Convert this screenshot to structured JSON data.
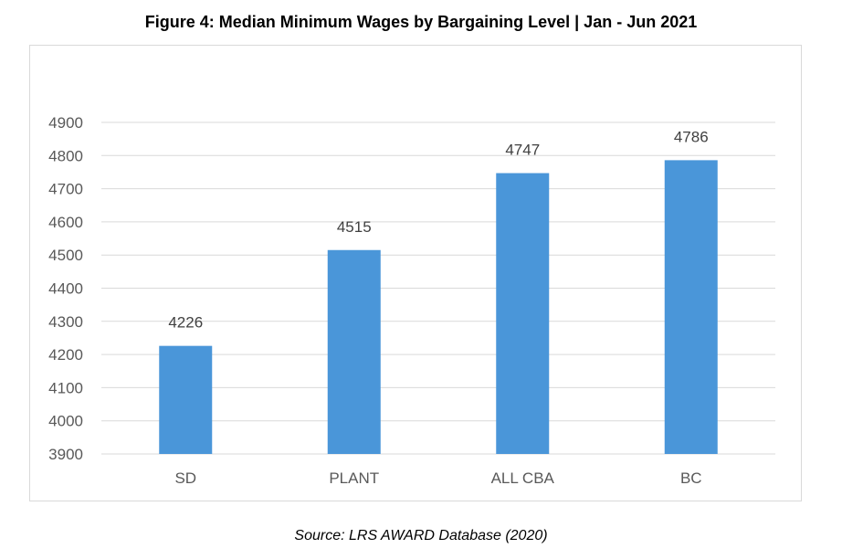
{
  "figure": {
    "title": "Figure 4: Median Minimum Wages by Bargaining Level | Jan - Jun 2021",
    "source": "Source: LRS AWARD Database (2020)"
  },
  "chart_data": {
    "type": "bar",
    "title": "Figure 4: Median Minimum Wages by Bargaining Level | Jan - Jun 2021",
    "categories": [
      "SD",
      "PLANT",
      "ALL CBA",
      "BC"
    ],
    "values": [
      4226,
      4515,
      4747,
      4786
    ],
    "data_labels": [
      "4226",
      "4515",
      "4747",
      "4786"
    ],
    "ylim": [
      3900,
      4900
    ],
    "yticks": [
      3900,
      4000,
      4100,
      4200,
      4300,
      4400,
      4500,
      4600,
      4700,
      4800,
      4900
    ],
    "xlabel": "",
    "ylabel": "",
    "grid": true,
    "legend": "none",
    "bar_color": "#4A96D9",
    "grid_color": "#d9d9d9"
  }
}
